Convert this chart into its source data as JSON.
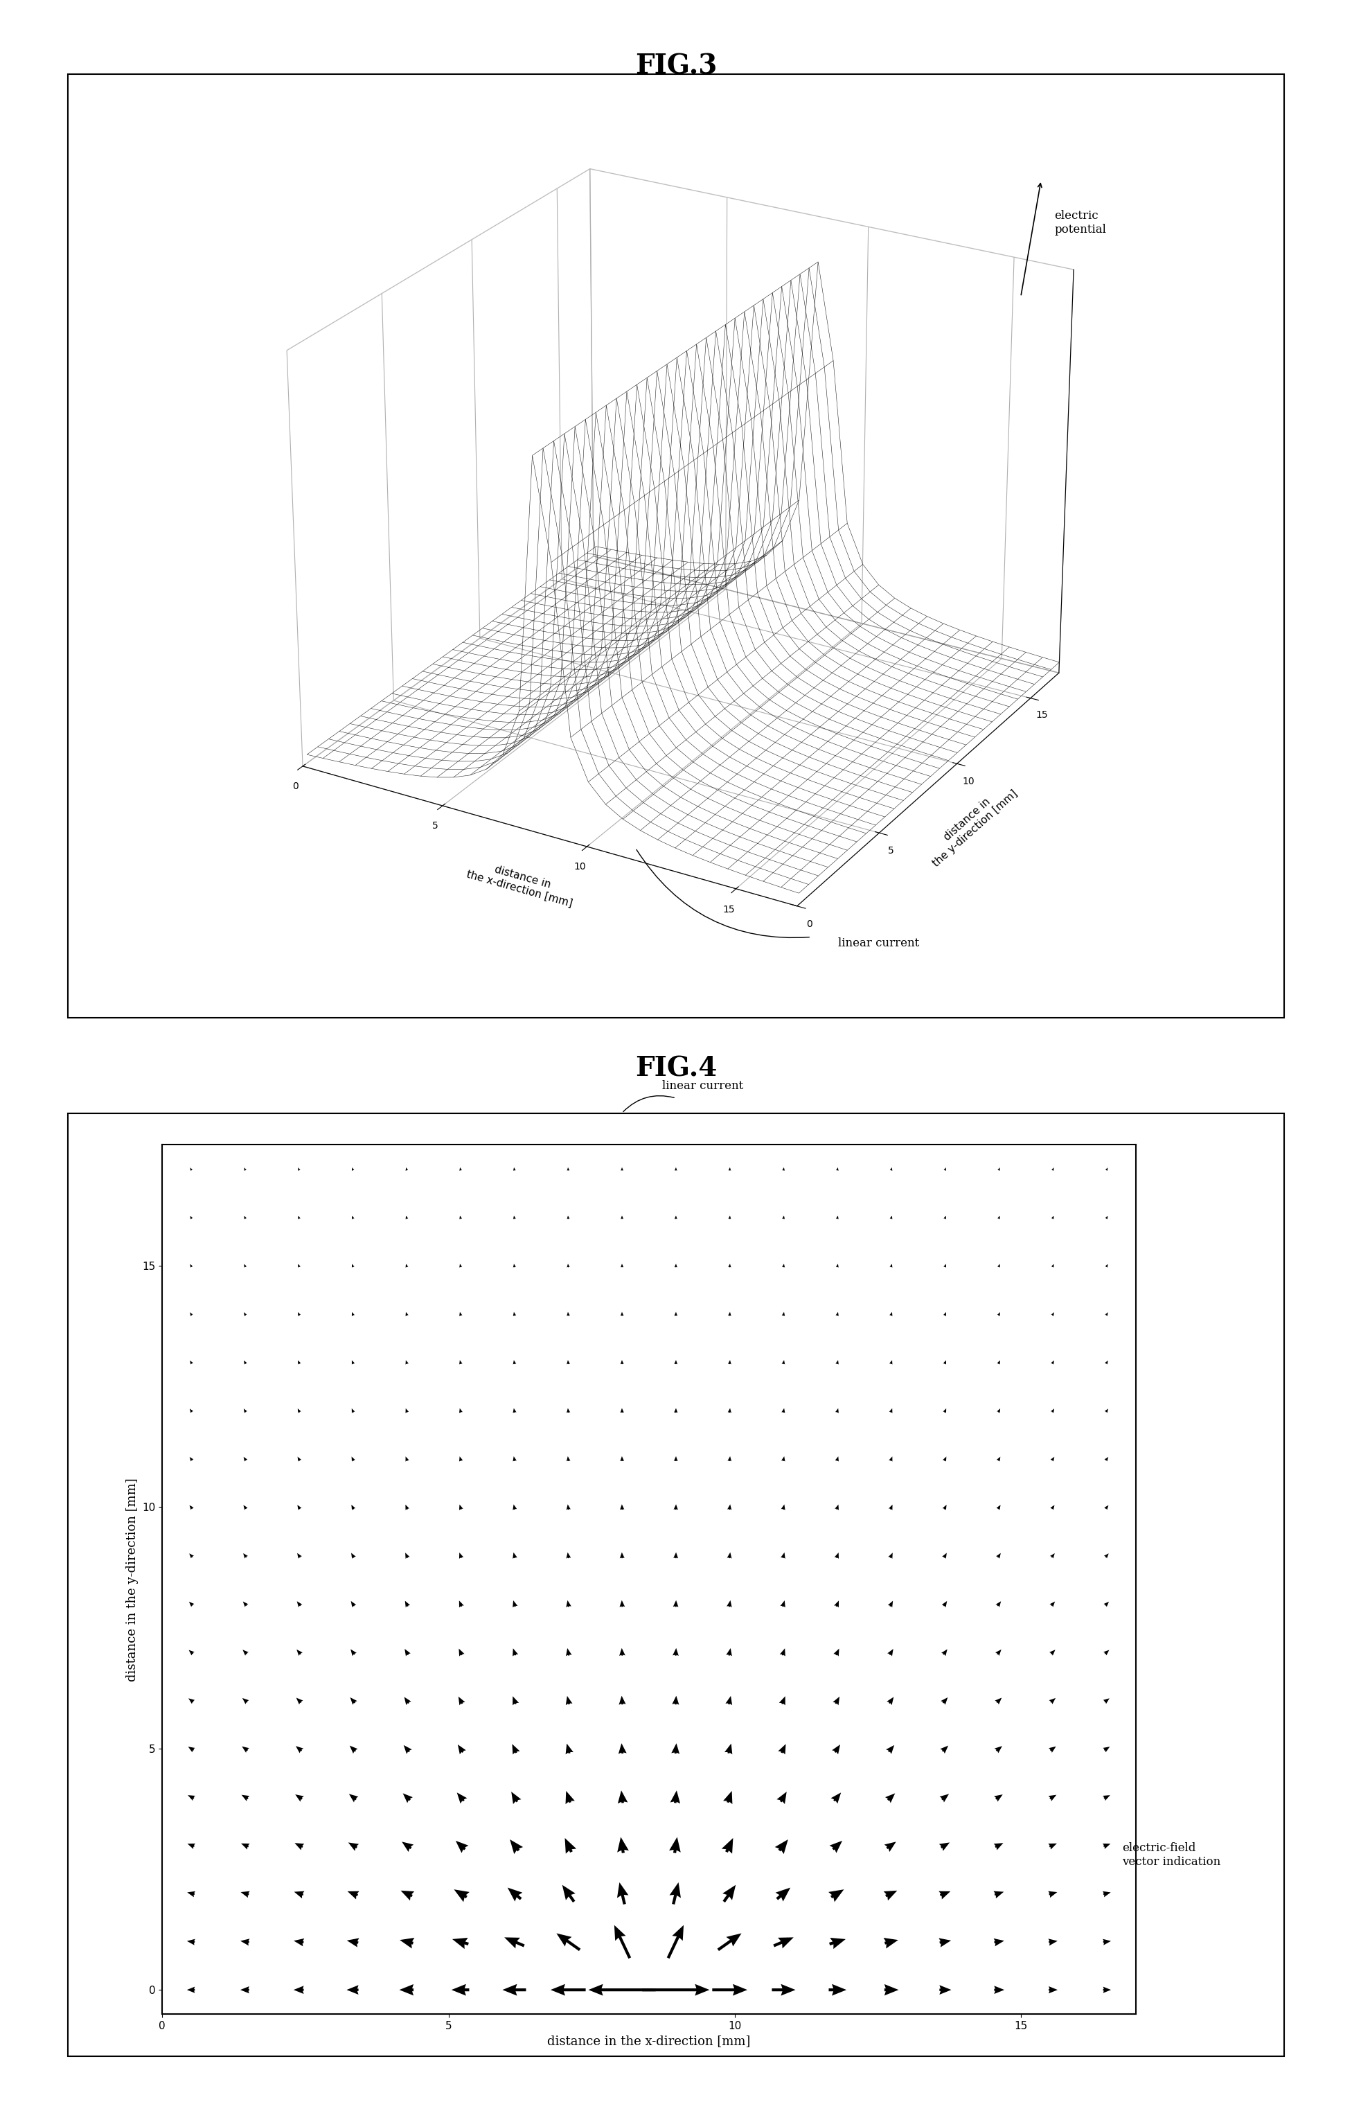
{
  "fig3_title": "FIG.3",
  "fig4_title": "FIG.4",
  "fig3_xlabel": "distance in\nthe x-direction [mm]",
  "fig3_ylabel": "distance in\nthe y-direction [mm]",
  "fig3_zlabel": "electric\npotential",
  "fig4_xlabel": "distance in the x-direction [mm]",
  "fig4_ylabel": "distance in the y-direction [mm]",
  "fig3_xlim": [
    0,
    17
  ],
  "fig3_ylim": [
    0,
    17
  ],
  "fig4_xlim": [
    0,
    17
  ],
  "fig4_ylim": [
    -0.5,
    17.5
  ],
  "linear_current_x": 8.5,
  "x_range": [
    0,
    17
  ],
  "y_range": [
    0,
    17
  ],
  "grid_n": 18,
  "background_color": "#ffffff",
  "line_color": "#000000",
  "title_fontsize": 28,
  "label_fontsize": 14,
  "tick_fontsize": 12
}
